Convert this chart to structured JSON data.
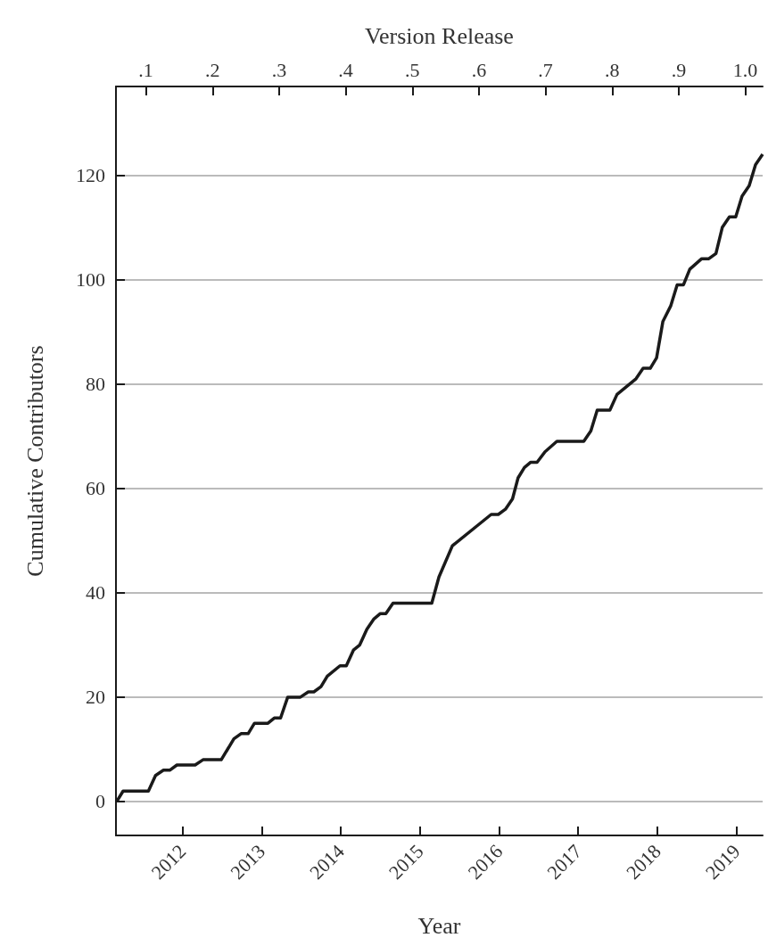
{
  "chart_data": {
    "type": "line",
    "xlabel": "Year",
    "ylabel": "Cumulative Contributors",
    "x2label": "Version Release",
    "xlim": [
      2011.16,
      2019.33
    ],
    "xticks": [
      2012,
      2013,
      2014,
      2015,
      2016,
      2017,
      2018,
      2019
    ],
    "x2lim": [
      0.055,
      1.026
    ],
    "x2ticks": [
      {
        "value": 0.1,
        "label": ".1"
      },
      {
        "value": 0.2,
        "label": ".2"
      },
      {
        "value": 0.3,
        "label": ".3"
      },
      {
        "value": 0.4,
        "label": ".4"
      },
      {
        "value": 0.5,
        "label": ".5"
      },
      {
        "value": 0.6,
        "label": ".6"
      },
      {
        "value": 0.7,
        "label": ".7"
      },
      {
        "value": 0.8,
        "label": ".8"
      },
      {
        "value": 0.9,
        "label": ".9"
      },
      {
        "value": 1,
        "label": "1.0"
      }
    ],
    "ylim": [
      -6.5,
      137
    ],
    "yticks": [
      0,
      20,
      40,
      60,
      80,
      100,
      120
    ],
    "grid": "y",
    "marker": "none",
    "line_style": "solid",
    "series": [
      {
        "color": "#1a1a1a",
        "x": [
          2011.17,
          2011.25,
          2011.57,
          2011.66,
          2011.76,
          2011.84,
          2011.93,
          2012.16,
          2012.26,
          2012.49,
          2012.65,
          2012.74,
          2012.83,
          2012.91,
          2013.08,
          2013.16,
          2013.24,
          2013.33,
          2013.49,
          2013.59,
          2013.66,
          2013.75,
          2013.83,
          2013.99,
          2014.07,
          2014.16,
          2014.24,
          2014.33,
          2014.42,
          2014.5,
          2014.57,
          2014.66,
          2015.15,
          2015.24,
          2015.41,
          2015.9,
          2015.99,
          2016.08,
          2016.17,
          2016.24,
          2016.32,
          2016.4,
          2016.48,
          2016.58,
          2016.73,
          2017.07,
          2017.16,
          2017.24,
          2017.4,
          2017.49,
          2017.73,
          2017.82,
          2017.91,
          2017.99,
          2018.07,
          2018.17,
          2018.25,
          2018.33,
          2018.41,
          2018.56,
          2018.65,
          2018.74,
          2018.82,
          2018.91,
          2018.99,
          2019.07,
          2019.16,
          2019.24,
          2019.33
        ],
        "values": [
          0,
          2,
          2,
          5,
          6,
          6,
          7,
          7,
          8,
          8,
          12,
          13,
          13,
          15,
          15,
          16,
          16,
          20,
          20,
          21,
          21,
          22,
          24,
          26,
          26,
          29,
          30,
          33,
          35,
          36,
          36,
          38,
          38,
          43,
          49,
          55,
          55,
          56,
          58,
          62,
          64,
          65,
          65,
          67,
          69,
          69,
          71,
          75,
          75,
          78,
          81,
          83,
          83,
          85,
          92,
          95,
          99,
          99,
          102,
          104,
          104,
          105,
          110,
          112,
          112,
          116,
          118,
          122,
          124
        ]
      }
    ]
  }
}
